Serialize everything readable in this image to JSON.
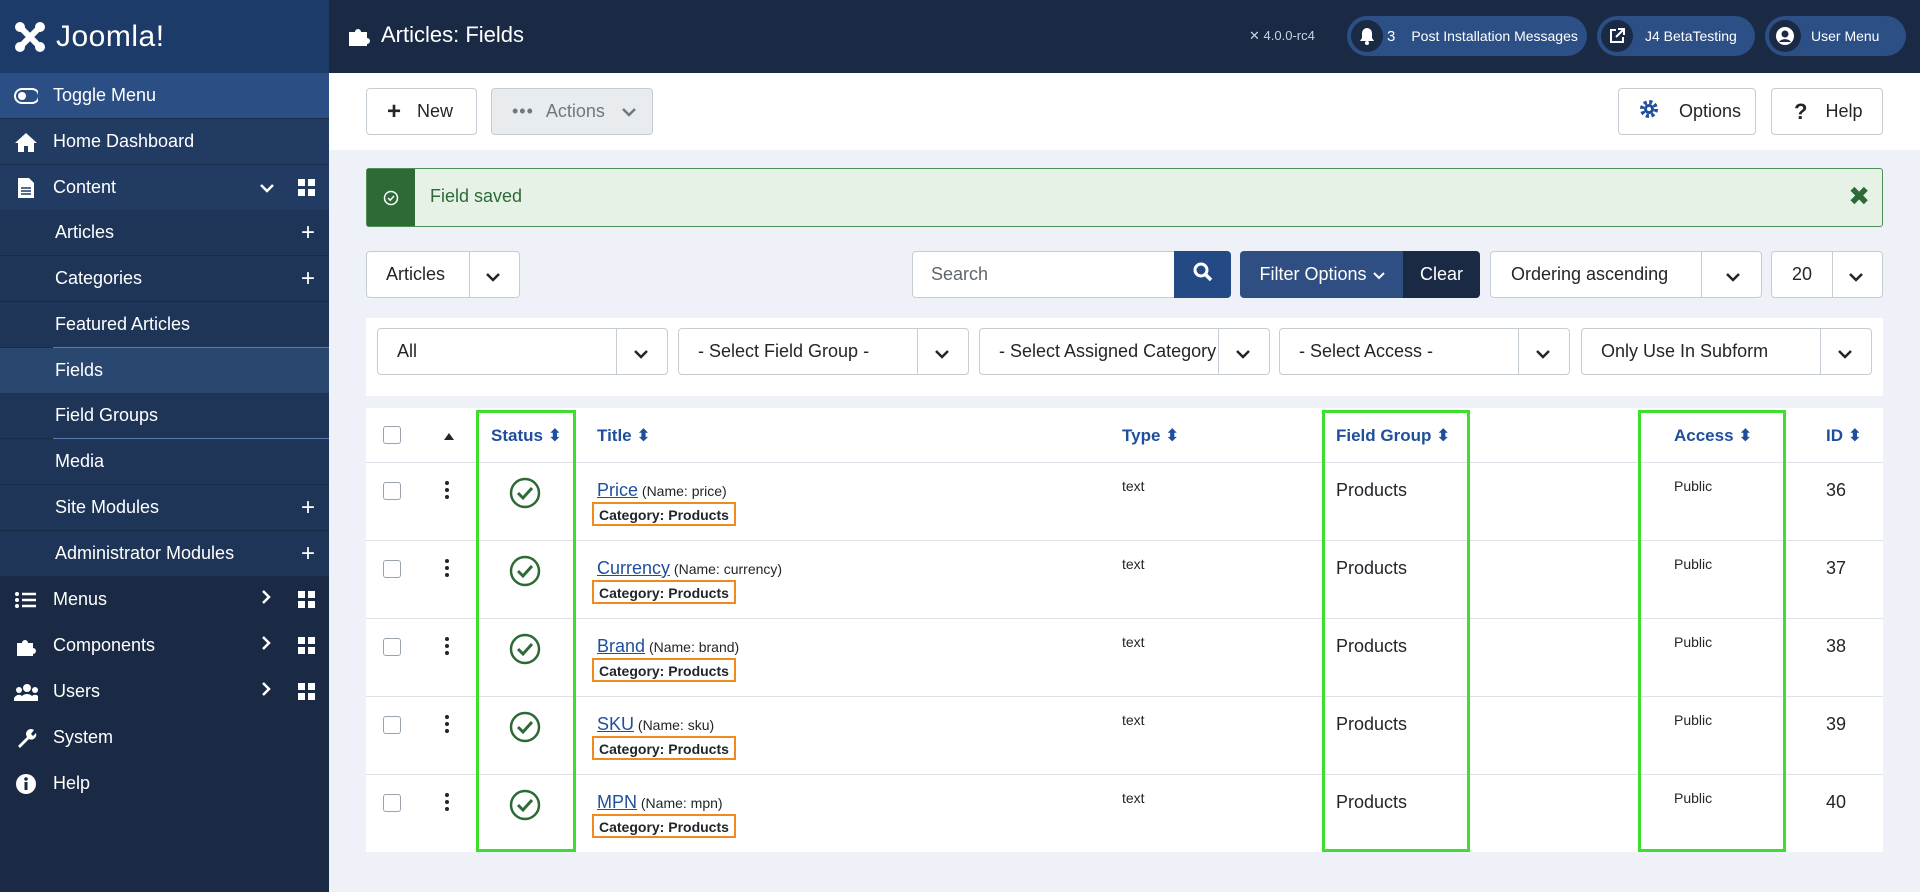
{
  "app": {
    "logo_text": "Joomla!"
  },
  "sidebar": {
    "toggle": "Toggle Menu",
    "home": "Home Dashboard",
    "content": "Content",
    "content_items": [
      "Articles",
      "Categories",
      "Featured Articles",
      "Fields",
      "Field Groups",
      "Media",
      "Site Modules",
      "Administrator Modules"
    ],
    "menus": "Menus",
    "components": "Components",
    "users": "Users",
    "system": "System",
    "help": "Help"
  },
  "header": {
    "title": "Articles: Fields",
    "version": "4.0.0-rc4",
    "notif_count": "3",
    "post_install": "Post Installation Messages",
    "beta": "J4 BetaTesting",
    "user_menu": "User Menu"
  },
  "toolbar": {
    "new": "New",
    "actions": "Actions",
    "options": "Options",
    "help": "Help"
  },
  "alert": {
    "message": "Field saved"
  },
  "search": {
    "context": "Articles",
    "placeholder": "Search",
    "filter_options": "Filter Options",
    "clear": "Clear",
    "ordering": "Ordering ascending",
    "limit": "20"
  },
  "filters": [
    "All",
    "- Select Field Group -",
    "- Select Assigned Category -",
    "- Select Access -",
    "Only Use In Subform"
  ],
  "table": {
    "headers": {
      "status": "Status",
      "title": "Title",
      "type": "Type",
      "field_group": "Field Group",
      "access": "Access",
      "id": "ID"
    },
    "rows": [
      {
        "title": "Price",
        "name": "(Name: price)",
        "category": "Category: Products",
        "type": "text",
        "group": "Products",
        "access": "Public",
        "id": "36"
      },
      {
        "title": "Currency",
        "name": "(Name: currency)",
        "category": "Category: Products",
        "type": "text",
        "group": "Products",
        "access": "Public",
        "id": "37"
      },
      {
        "title": "Brand",
        "name": "(Name: brand)",
        "category": "Category: Products",
        "type": "text",
        "group": "Products",
        "access": "Public",
        "id": "38"
      },
      {
        "title": "SKU",
        "name": "(Name: sku)",
        "category": "Category: Products",
        "type": "text",
        "group": "Products",
        "access": "Public",
        "id": "39"
      },
      {
        "title": "MPN",
        "name": "(Name: mpn)",
        "category": "Category: Products",
        "type": "text",
        "group": "Products",
        "access": "Public",
        "id": "40"
      }
    ]
  }
}
